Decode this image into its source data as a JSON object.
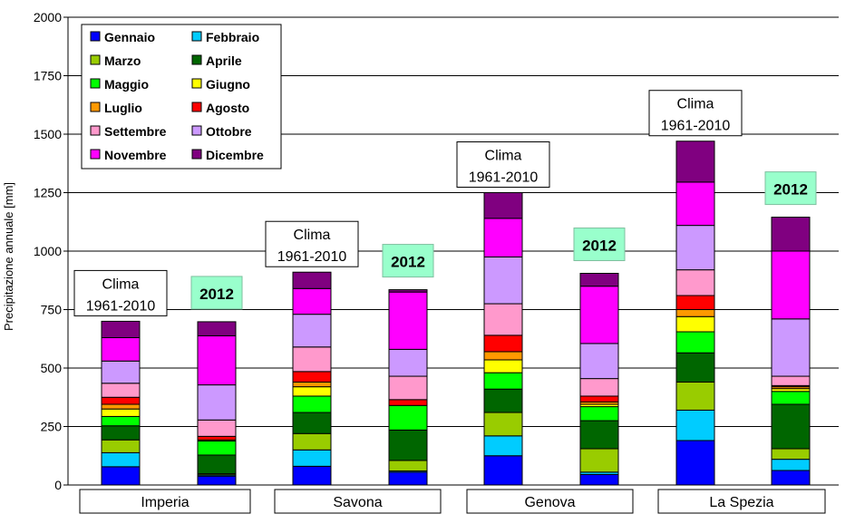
{
  "chart_data": {
    "type": "bar",
    "stacked": true,
    "ylabel": "Precipitazione annuale [mm]",
    "ylim": [
      0,
      2000
    ],
    "yticks": [
      0,
      250,
      500,
      750,
      1000,
      1250,
      1500,
      1750,
      2000
    ],
    "grid": true,
    "legend_position": "top-left",
    "groups": [
      "Imperia",
      "Savona",
      "Genova",
      "La Spezia"
    ],
    "annotations": {
      "clima": [
        "Clima",
        "1961-2010"
      ],
      "year": "2012"
    },
    "bars": [
      {
        "group": "Imperia",
        "label": "clima"
      },
      {
        "group": "Imperia",
        "label": "2012"
      },
      {
        "group": "Savona",
        "label": "clima"
      },
      {
        "group": "Savona",
        "label": "2012"
      },
      {
        "group": "Genova",
        "label": "clima"
      },
      {
        "group": "Genova",
        "label": "2012"
      },
      {
        "group": "La Spezia",
        "label": "clima"
      },
      {
        "group": "La Spezia",
        "label": "2012"
      }
    ],
    "series": [
      {
        "name": "Gennaio",
        "color": "#0000ff",
        "values": [
          78,
          38,
          80,
          55,
          125,
          45,
          190,
          62
        ]
      },
      {
        "name": "Febbraio",
        "color": "#00ccff",
        "values": [
          60,
          5,
          70,
          5,
          85,
          10,
          130,
          48
        ]
      },
      {
        "name": "Marzo",
        "color": "#99cc00",
        "values": [
          55,
          5,
          70,
          45,
          100,
          100,
          120,
          45
        ]
      },
      {
        "name": "Aprile",
        "color": "#006600",
        "values": [
          60,
          80,
          90,
          130,
          100,
          120,
          125,
          190
        ]
      },
      {
        "name": "Maggio",
        "color": "#00ff00",
        "values": [
          40,
          60,
          70,
          105,
          70,
          60,
          90,
          55
        ]
      },
      {
        "name": "Giugno",
        "color": "#ffff00",
        "values": [
          32,
          0,
          40,
          0,
          55,
          10,
          65,
          12
        ]
      },
      {
        "name": "Luglio",
        "color": "#ff9900",
        "values": [
          20,
          5,
          20,
          0,
          35,
          10,
          30,
          8
        ]
      },
      {
        "name": "Agosto",
        "color": "#ff0000",
        "values": [
          30,
          15,
          45,
          25,
          70,
          25,
          60,
          5
        ]
      },
      {
        "name": "Settembre",
        "color": "#ff99cc",
        "values": [
          60,
          70,
          105,
          100,
          135,
          75,
          110,
          40
        ]
      },
      {
        "name": "Ottobre",
        "color": "#cc99ff",
        "values": [
          95,
          150,
          140,
          115,
          200,
          150,
          190,
          245
        ]
      },
      {
        "name": "Novembre",
        "color": "#ff00ff",
        "values": [
          100,
          210,
          110,
          245,
          165,
          245,
          185,
          290
        ]
      },
      {
        "name": "Dicembre",
        "color": "#800080",
        "values": [
          70,
          60,
          70,
          10,
          110,
          55,
          175,
          145
        ]
      }
    ]
  }
}
